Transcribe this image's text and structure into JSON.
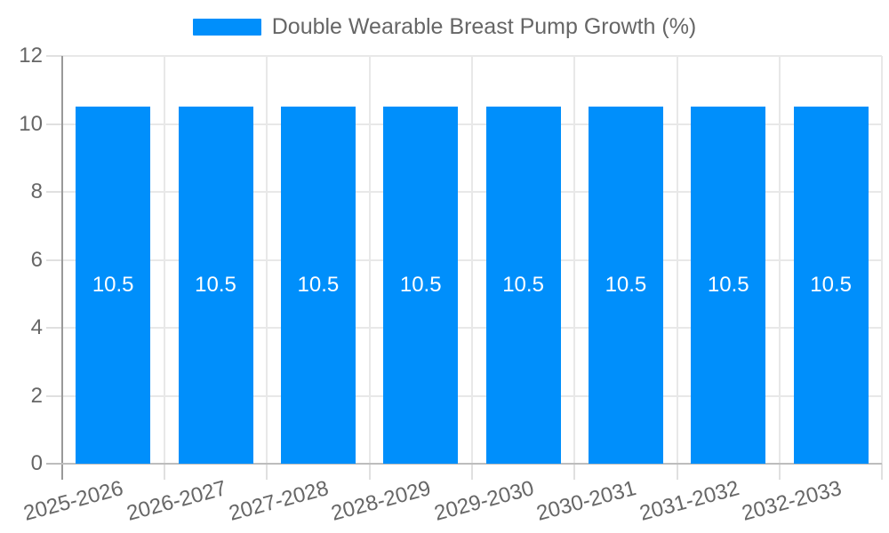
{
  "chart_data": {
    "type": "bar",
    "title": "Double Wearable Breast Pump Growth (%)",
    "legend_position": "top",
    "categories": [
      "2025-2026",
      "2026-2027",
      "2027-2028",
      "2028-2029",
      "2029-2030",
      "2030-2031",
      "2031-2032",
      "2032-2033"
    ],
    "series": [
      {
        "name": "Double Wearable Breast Pump Growth (%)",
        "values": [
          10.5,
          10.5,
          10.5,
          10.5,
          10.5,
          10.5,
          10.5,
          10.5
        ]
      }
    ],
    "data_labels": [
      "10.5",
      "10.5",
      "10.5",
      "10.5",
      "10.5",
      "10.5",
      "10.5",
      "10.5"
    ],
    "xlabel": "",
    "ylabel": "",
    "ylim": [
      0,
      12
    ],
    "yticks": [
      0,
      2,
      4,
      6,
      8,
      10,
      12
    ],
    "grid": true,
    "x_label_rotation": -15,
    "colors": {
      "bar": "#008FFB",
      "legend_text": "#666666",
      "axis_label": "#666666",
      "grid_line": "#e8e8e8",
      "x_axis_line": "#bdbdbd",
      "y_axis_line": "#999999",
      "tick": "#e0e0e0",
      "data_label": "#ffffff",
      "background": "#ffffff"
    }
  }
}
